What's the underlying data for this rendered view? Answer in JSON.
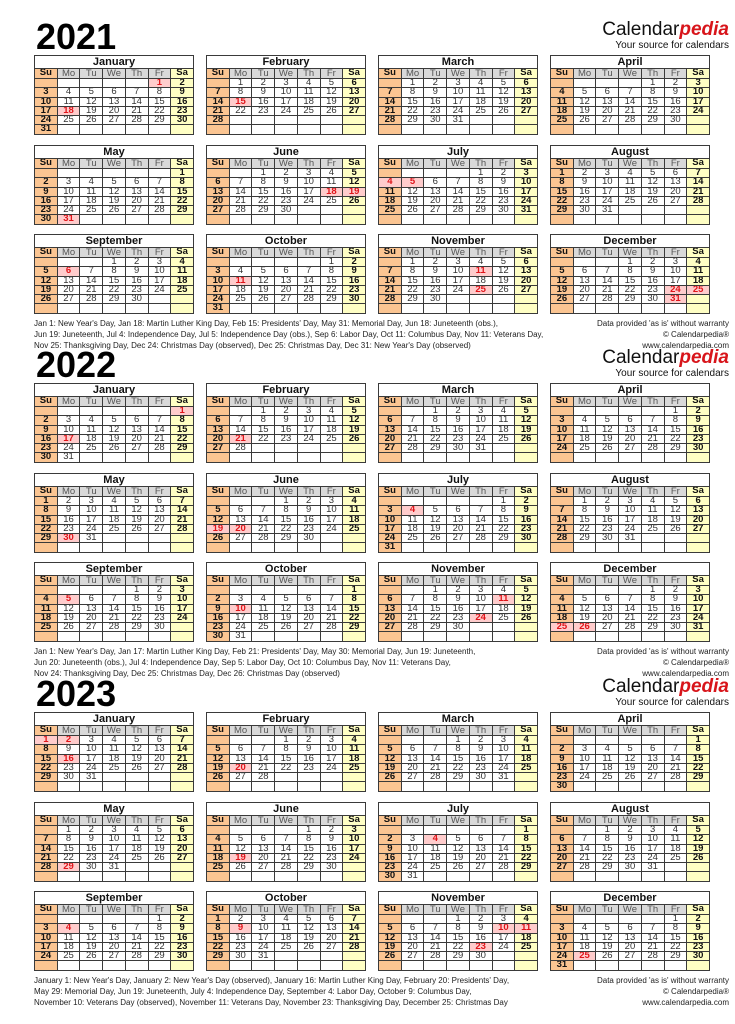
{
  "brand": {
    "name_plain": "Calendar",
    "name_accent": "pedia",
    "tagline": "Your source for calendars"
  },
  "disclaimer": [
    "Data provided 'as is' without warranty",
    "© Calendarpedia®",
    "www.calendarpedia.com"
  ],
  "weekdays": [
    "Su",
    "Mo",
    "Tu",
    "We",
    "Th",
    "Fr",
    "Sa"
  ],
  "months": [
    "January",
    "February",
    "March",
    "April",
    "May",
    "June",
    "July",
    "August",
    "September",
    "October",
    "November",
    "December"
  ],
  "colors": {
    "sunday": "#fbc592",
    "saturday": "#ffffc4",
    "weekday_header": "#d9d9d9",
    "holiday_bg": "#ffcccc",
    "holiday_text": "#e0151b",
    "brand_accent": "#d8151b"
  },
  "years": [
    {
      "year": "2021",
      "holidays": [
        "1-1",
        "1-18",
        "2-15",
        "5-31",
        "6-18",
        "6-19",
        "7-4",
        "7-5",
        "9-6",
        "10-11",
        "11-11",
        "11-25",
        "12-24",
        "12-25",
        "12-31"
      ],
      "notes": [
        "Jan 1: New Year's Day, Jan 18: Martin Luther King Day, Feb 15: Presidents' Day, May 31: Memorial Day, Jun 18: Juneteenth (obs.),",
        "Jun 19: Juneteenth, Jul 4: Independence Day, Jul 5: Independence Day (obs.), Sep 6: Labor Day, Oct 11: Columbus Day, Nov 11: Veterans Day,",
        "Nov 25: Thanksgiving Day, Dec 24: Christmas Day (observed), Dec 25: Christmas Day, Dec 31: New Year's Day (observed)"
      ]
    },
    {
      "year": "2022",
      "holidays": [
        "1-1",
        "1-17",
        "2-21",
        "5-30",
        "6-19",
        "6-20",
        "7-4",
        "9-5",
        "10-10",
        "11-11",
        "11-24",
        "12-25",
        "12-26"
      ],
      "notes": [
        "Jan 1: New Year's Day, Jan 17: Martin Luther King Day, Feb 21: Presidents' Day, May 30: Memorial Day, Jun 19: Juneteenth,",
        "Jun 20: Juneteenth (obs.), Jul 4: Independence Day, Sep 5: Labor Day, Oct 10: Columbus Day, Nov 11: Veterans Day,",
        "Nov 24: Thanksgiving Day, Dec 25: Christmas Day, Dec 26: Christmas Day (observed)"
      ]
    },
    {
      "year": "2023",
      "holidays": [
        "1-1",
        "1-2",
        "1-16",
        "2-20",
        "5-29",
        "6-19",
        "7-4",
        "9-4",
        "10-9",
        "11-10",
        "11-11",
        "11-23",
        "12-25"
      ],
      "notes": [
        "January 1: New Year's Day, January 2: New Year's Day (observed), January 16: Martin Luther King Day, February 20: Presidents' Day,",
        "May 29: Memorial Day, Jun 19: Juneteenth, July 4: Independence Day, September 4: Labor Day, October 9: Columbus Day,",
        "November 10: Veterans Day (observed), November 11: Veterans Day, November 23: Thanksgiving Day, December 25: Christmas Day"
      ]
    }
  ]
}
